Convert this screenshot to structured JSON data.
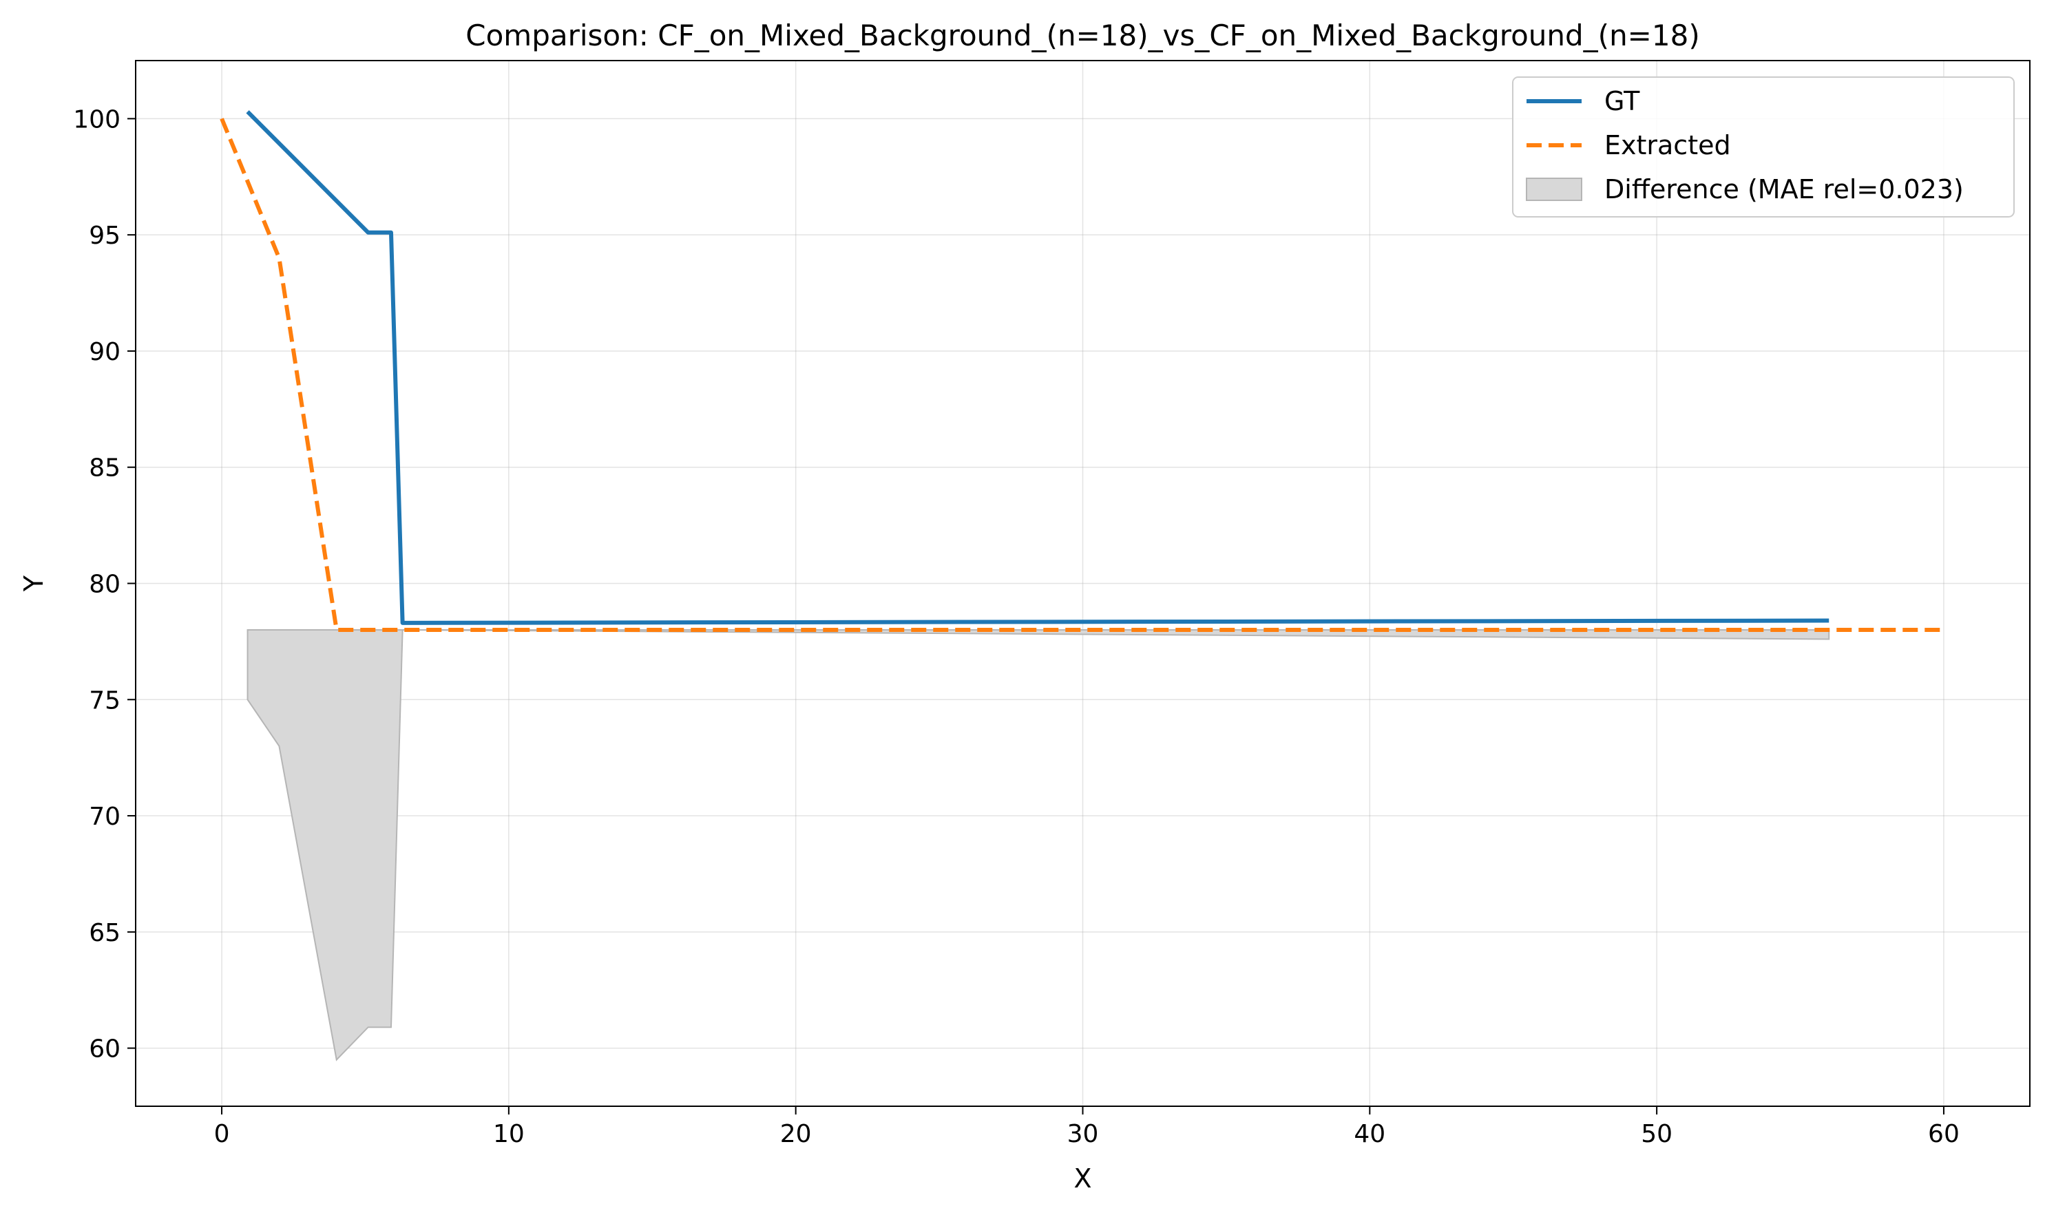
{
  "chart_data": {
    "type": "line",
    "title": "Comparison: CF_on_Mixed_Background_(n=18)_vs_CF_on_Mixed_Background_(n=18)",
    "xlabel": "X",
    "ylabel": "Y",
    "xlim": [
      -3,
      63
    ],
    "ylim": [
      57.5,
      102.5
    ],
    "xticks": [
      0,
      10,
      20,
      30,
      40,
      50,
      60
    ],
    "yticks": [
      60,
      65,
      70,
      75,
      80,
      85,
      90,
      95,
      100
    ],
    "grid": true,
    "legend_position": "top-right",
    "series": [
      {
        "name": "GT",
        "style": "solid",
        "color": "#1f77b4",
        "x": [
          0.9,
          5.1,
          5.9,
          6.3,
          56
        ],
        "y": [
          100.3,
          95.1,
          95.1,
          78.3,
          78.4
        ]
      },
      {
        "name": "Extracted",
        "style": "dashed",
        "color": "#ff7f0e",
        "x": [
          0,
          2,
          4,
          60
        ],
        "y": [
          100,
          94,
          78,
          78
        ]
      }
    ],
    "difference": {
      "name": "Difference (MAE rel=0.023)",
      "color": "#d8d8d8",
      "x": [
        0.9,
        2,
        4,
        5.1,
        5.9,
        6.3,
        56
      ],
      "lower": [
        75,
        73,
        59.5,
        60.9,
        60.9,
        78,
        77.6
      ],
      "upper": [
        78,
        78,
        78,
        78,
        78,
        78,
        78
      ]
    }
  }
}
